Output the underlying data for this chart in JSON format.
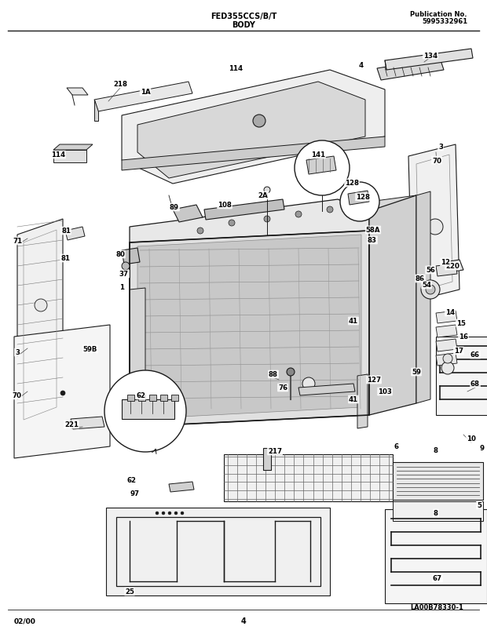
{
  "title_model": "FED355CCS/B/T",
  "title_sub": "BODY",
  "pub_label": "Publication No.",
  "pub_number": "5995332961",
  "diagram_ref": "LA00B78330-1",
  "date_code": "02/00",
  "page_number": "4",
  "bg_color": "#ffffff",
  "text_color": "#000000",
  "figsize": [
    6.2,
    8.04
  ],
  "dpi": 100,
  "lc": "#1a1a1a",
  "lw": 0.7
}
